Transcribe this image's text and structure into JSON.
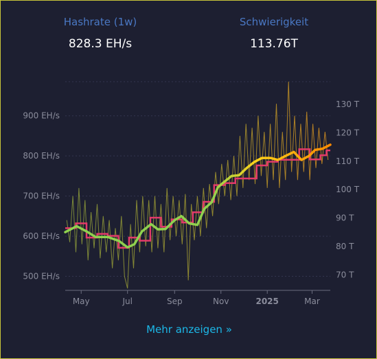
{
  "stats": {
    "hashrate": {
      "label": "Hashrate (1w)",
      "value": "828.3 EH/s"
    },
    "difficulty": {
      "label": "Schwierigkeit",
      "value": "113.76T"
    }
  },
  "more_link": {
    "label": "Mehr anzeigen »"
  },
  "colors": {
    "background": "#1d1f31",
    "label": "#4a78c4",
    "link": "#1cb8e8",
    "difficulty_line": "#e23a6a",
    "hashrate_low": "#8fd14f",
    "hashrate_high": "#ff8a00",
    "raw_hashrate": "#8a9b3a"
  },
  "chart_data": {
    "type": "line",
    "title": "",
    "xlabel": "",
    "ylabel": "",
    "x_ticks": [
      {
        "label": "May",
        "date": "2024-05-01"
      },
      {
        "label": "Jul",
        "date": "2024-07-01"
      },
      {
        "label": "Sep",
        "date": "2024-09-01"
      },
      {
        "label": "Nov",
        "date": "2024-11-01"
      },
      {
        "label": "2025",
        "date": "2025-01-01",
        "bold": true
      },
      {
        "label": "Mar",
        "date": "2025-03-01"
      }
    ],
    "xlim": [
      "2024-04-10",
      "2025-03-25"
    ],
    "y_left": {
      "unit": "EH/s",
      "ticks": [
        "500 EH/s",
        "600 EH/s",
        "700 EH/s",
        "800 EH/s",
        "900 EH/s"
      ],
      "tick_values": [
        500,
        600,
        700,
        800,
        900
      ],
      "range": [
        465,
        985
      ]
    },
    "y_right": {
      "unit": "T",
      "ticks": [
        "70 T",
        "80 T",
        "90 T",
        "100 T",
        "110 T",
        "120 T",
        "130 T"
      ],
      "tick_values": [
        70,
        80,
        90,
        100,
        110,
        120,
        130
      ],
      "range": [
        64.5,
        138
      ]
    },
    "grid": true,
    "series": [
      {
        "kind": "difficulty",
        "axis": "right",
        "step": true,
        "points": [
          [
            "2024-04-10",
            86.4
          ],
          [
            "2024-04-24",
            88.1
          ],
          [
            "2024-05-08",
            83.1
          ],
          [
            "2024-05-22",
            84.4
          ],
          [
            "2024-06-05",
            83.7
          ],
          [
            "2024-06-19",
            79.5
          ],
          [
            "2024-07-03",
            83.1
          ],
          [
            "2024-07-17",
            82.0
          ],
          [
            "2024-07-31",
            90.1
          ],
          [
            "2024-08-14",
            86.9
          ],
          [
            "2024-08-28",
            89.5
          ],
          [
            "2024-09-11",
            88.4
          ],
          [
            "2024-09-25",
            92.0
          ],
          [
            "2024-10-09",
            95.7
          ],
          [
            "2024-10-23",
            101.6
          ],
          [
            "2024-11-06",
            102.3
          ],
          [
            "2024-11-20",
            103.9
          ],
          [
            "2024-12-04",
            103.9
          ],
          [
            "2024-12-18",
            108.5
          ],
          [
            "2025-01-01",
            109.8
          ],
          [
            "2025-01-15",
            110.5
          ],
          [
            "2025-01-29",
            110.5
          ],
          [
            "2025-02-12",
            114.2
          ],
          [
            "2025-02-26",
            110.6
          ],
          [
            "2025-03-12",
            112.1
          ],
          [
            "2025-03-20",
            113.8
          ],
          [
            "2025-03-25",
            113.8
          ]
        ]
      },
      {
        "kind": "hashrate_avg",
        "axis": "left",
        "points": [
          [
            "2024-04-10",
            610
          ],
          [
            "2024-04-25",
            625
          ],
          [
            "2024-05-08",
            612
          ],
          [
            "2024-05-20",
            598
          ],
          [
            "2024-06-05",
            598
          ],
          [
            "2024-06-20",
            588
          ],
          [
            "2024-07-01",
            572
          ],
          [
            "2024-07-10",
            580
          ],
          [
            "2024-07-20",
            612
          ],
          [
            "2024-08-01",
            630
          ],
          [
            "2024-08-10",
            617
          ],
          [
            "2024-08-20",
            618
          ],
          [
            "2024-09-01",
            640
          ],
          [
            "2024-09-10",
            650
          ],
          [
            "2024-09-20",
            632
          ],
          [
            "2024-10-01",
            628
          ],
          [
            "2024-10-10",
            668
          ],
          [
            "2024-10-20",
            685
          ],
          [
            "2024-10-28",
            722
          ],
          [
            "2024-11-05",
            735
          ],
          [
            "2024-11-15",
            750
          ],
          [
            "2024-11-25",
            752
          ],
          [
            "2024-12-05",
            770
          ],
          [
            "2024-12-15",
            785
          ],
          [
            "2024-12-25",
            795
          ],
          [
            "2025-01-05",
            795
          ],
          [
            "2025-01-15",
            790
          ],
          [
            "2025-01-25",
            800
          ],
          [
            "2025-02-05",
            810
          ],
          [
            "2025-02-15",
            790
          ],
          [
            "2025-02-25",
            800
          ],
          [
            "2025-03-05",
            815
          ],
          [
            "2025-03-15",
            818
          ],
          [
            "2025-03-25",
            828
          ]
        ]
      },
      {
        "kind": "hashrate_raw",
        "axis": "left",
        "points": [
          [
            "2024-04-12",
            640
          ],
          [
            "2024-04-16",
            585
          ],
          [
            "2024-04-20",
            700
          ],
          [
            "2024-04-24",
            560
          ],
          [
            "2024-04-28",
            720
          ],
          [
            "2024-05-02",
            580
          ],
          [
            "2024-05-06",
            690
          ],
          [
            "2024-05-10",
            540
          ],
          [
            "2024-05-14",
            660
          ],
          [
            "2024-05-18",
            570
          ],
          [
            "2024-05-22",
            680
          ],
          [
            "2024-05-26",
            545
          ],
          [
            "2024-05-30",
            650
          ],
          [
            "2024-06-03",
            560
          ],
          [
            "2024-06-07",
            640
          ],
          [
            "2024-06-11",
            520
          ],
          [
            "2024-06-15",
            620
          ],
          [
            "2024-06-19",
            540
          ],
          [
            "2024-06-23",
            650
          ],
          [
            "2024-06-27",
            500
          ],
          [
            "2024-07-01",
            470
          ],
          [
            "2024-07-05",
            630
          ],
          [
            "2024-07-09",
            520
          ],
          [
            "2024-07-13",
            690
          ],
          [
            "2024-07-17",
            560
          ],
          [
            "2024-07-21",
            700
          ],
          [
            "2024-07-25",
            575
          ],
          [
            "2024-07-29",
            690
          ],
          [
            "2024-08-02",
            560
          ],
          [
            "2024-08-06",
            700
          ],
          [
            "2024-08-10",
            570
          ],
          [
            "2024-08-14",
            680
          ],
          [
            "2024-08-18",
            560
          ],
          [
            "2024-08-22",
            720
          ],
          [
            "2024-08-26",
            590
          ],
          [
            "2024-08-30",
            700
          ],
          [
            "2024-09-03",
            600
          ],
          [
            "2024-09-07",
            690
          ],
          [
            "2024-09-11",
            580
          ],
          [
            "2024-09-15",
            705
          ],
          [
            "2024-09-19",
            490
          ],
          [
            "2024-09-23",
            680
          ],
          [
            "2024-09-27",
            590
          ],
          [
            "2024-10-01",
            700
          ],
          [
            "2024-10-05",
            600
          ],
          [
            "2024-10-09",
            720
          ],
          [
            "2024-10-13",
            620
          ],
          [
            "2024-10-17",
            730
          ],
          [
            "2024-10-21",
            650
          ],
          [
            "2024-10-25",
            760
          ],
          [
            "2024-10-29",
            680
          ],
          [
            "2024-11-02",
            780
          ],
          [
            "2024-11-06",
            700
          ],
          [
            "2024-11-10",
            790
          ],
          [
            "2024-11-14",
            690
          ],
          [
            "2024-11-18",
            800
          ],
          [
            "2024-11-22",
            700
          ],
          [
            "2024-11-26",
            850
          ],
          [
            "2024-11-30",
            720
          ],
          [
            "2024-12-04",
            880
          ],
          [
            "2024-12-08",
            740
          ],
          [
            "2024-12-12",
            870
          ],
          [
            "2024-12-16",
            730
          ],
          [
            "2024-12-20",
            900
          ],
          [
            "2024-12-24",
            750
          ],
          [
            "2024-12-28",
            860
          ],
          [
            "2025-01-01",
            720
          ],
          [
            "2025-01-05",
            880
          ],
          [
            "2025-01-09",
            740
          ],
          [
            "2025-01-13",
            930
          ],
          [
            "2025-01-17",
            720
          ],
          [
            "2025-01-21",
            860
          ],
          [
            "2025-01-25",
            740
          ],
          [
            "2025-01-29",
            985
          ],
          [
            "2025-02-02",
            760
          ],
          [
            "2025-02-06",
            900
          ],
          [
            "2025-02-10",
            740
          ],
          [
            "2025-02-14",
            880
          ],
          [
            "2025-02-18",
            760
          ],
          [
            "2025-02-22",
            910
          ],
          [
            "2025-02-26",
            740
          ],
          [
            "2025-03-02",
            880
          ],
          [
            "2025-03-06",
            770
          ],
          [
            "2025-03-10",
            870
          ],
          [
            "2025-03-14",
            780
          ],
          [
            "2025-03-18",
            860
          ],
          [
            "2025-03-22",
            790
          ]
        ]
      }
    ]
  }
}
